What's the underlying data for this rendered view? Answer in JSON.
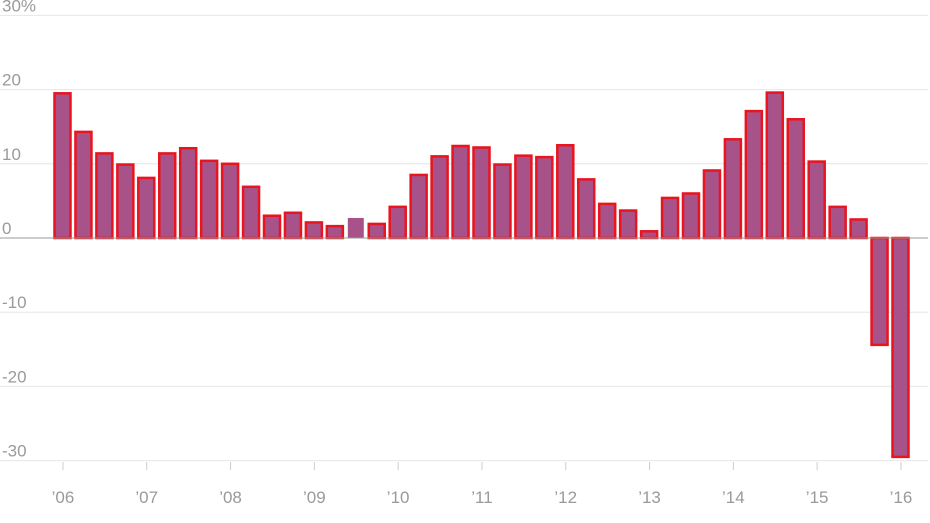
{
  "chart_data": {
    "type": "bar",
    "ylim": [
      -30,
      30
    ],
    "yticks": [
      {
        "value": 30,
        "label": "30%"
      },
      {
        "value": 20,
        "label": "20"
      },
      {
        "value": 10,
        "label": "10"
      },
      {
        "value": 0,
        "label": "0"
      },
      {
        "value": -10,
        "label": "-10"
      },
      {
        "value": -20,
        "label": "-20"
      },
      {
        "value": -30,
        "label": "-30"
      }
    ],
    "xticks": [
      "’06",
      "’07",
      "’08",
      "’09",
      "’10",
      "’11",
      "’12",
      "’13",
      "’14",
      "’15",
      "’16"
    ],
    "bar_fill": "#a8528a",
    "bar_outline": "#e8141e",
    "grid": true,
    "values": [
      19.5,
      14.3,
      11.4,
      9.9,
      8.1,
      11.4,
      12.1,
      10.4,
      10.0,
      6.9,
      3.0,
      3.4,
      2.1,
      1.6,
      2.7,
      1.9,
      4.2,
      8.5,
      11.0,
      12.4,
      12.2,
      9.9,
      11.1,
      10.9,
      12.5,
      7.9,
      4.6,
      3.7,
      0.9,
      5.4,
      6.0,
      9.1,
      13.3,
      17.1,
      19.6,
      16.0,
      10.3,
      4.2,
      2.5,
      -14.4,
      -29.5
    ],
    "highlight_index": 14
  }
}
